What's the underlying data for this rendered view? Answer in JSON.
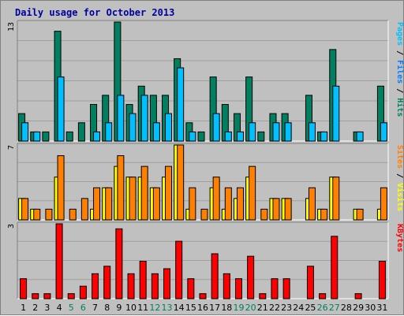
{
  "chart_data": {
    "type": "bar",
    "title": "Daily usage for October 2013",
    "categories": [
      "1",
      "2",
      "3",
      "4",
      "5",
      "6",
      "7",
      "8",
      "9",
      "10",
      "11",
      "12",
      "13",
      "14",
      "15",
      "16",
      "17",
      "18",
      "19",
      "20",
      "21",
      "22",
      "23",
      "24",
      "25",
      "26",
      "27",
      "28",
      "29",
      "30",
      "31"
    ],
    "weekend_days": [
      "5",
      "6",
      "12",
      "13",
      "19",
      "20",
      "26",
      "27"
    ],
    "panels": [
      {
        "id": "hits",
        "ymax": 13,
        "ymax_label": "13",
        "series": [
          {
            "name": "Hits",
            "color": "#008060",
            "values": [
              3,
              1,
              1,
              12,
              1,
              2,
              4,
              5,
              13,
              4,
              6,
              5,
              5,
              9,
              2,
              1,
              7,
              4,
              3,
              7,
              1,
              3,
              3,
              0,
              5,
              1,
              10,
              0,
              1,
              0,
              6
            ]
          },
          {
            "name": "Files",
            "color": "#00C0FF",
            "values": [
              2,
              1,
              0,
              7,
              0,
              0,
              1,
              2,
              5,
              3,
              5,
              2,
              3,
              8,
              1,
              0,
              3,
              1,
              1,
              2,
              0,
              2,
              2,
              0,
              2,
              1,
              6,
              0,
              1,
              0,
              2
            ]
          },
          {
            "name": "Pages",
            "color": "#00C0FF",
            "values": [
              0,
              0,
              0,
              0,
              0,
              0,
              0,
              0,
              0,
              0,
              0,
              0,
              0,
              0,
              0,
              0,
              0,
              0,
              0,
              0,
              0,
              0,
              0,
              0,
              0,
              0,
              0,
              0,
              0,
              0,
              0
            ]
          }
        ],
        "right_labels": [
          {
            "text": "Pages",
            "color": "#00C0FF"
          },
          {
            "text": " / ",
            "color": "#000000"
          },
          {
            "text": "Files",
            "color": "#0080FF"
          },
          {
            "text": " / ",
            "color": "#000000"
          },
          {
            "text": "Hits",
            "color": "#008060"
          }
        ]
      },
      {
        "id": "visits",
        "ymax": 7,
        "ymax_label": "7",
        "series": [
          {
            "name": "Visits",
            "color": "#FFFF00",
            "values": [
              2,
              1,
              0,
              4,
              0,
              0,
              1,
              3,
              5,
              4,
              4,
              3,
              4,
              7,
              1,
              0,
              3,
              1,
              2,
              4,
              0,
              2,
              2,
              0,
              2,
              1,
              4,
              0,
              1,
              0,
              1
            ]
          },
          {
            "name": "Sites",
            "color": "#FF8000",
            "values": [
              2,
              1,
              1,
              6,
              1,
              2,
              3,
              3,
              6,
              4,
              5,
              3,
              5,
              7,
              3,
              1,
              4,
              3,
              3,
              5,
              1,
              2,
              2,
              0,
              3,
              1,
              4,
              0,
              1,
              0,
              3
            ]
          }
        ],
        "right_labels": [
          {
            "text": "Sites",
            "color": "#FF8000"
          },
          {
            "text": " / ",
            "color": "#000000"
          },
          {
            "text": "Visits",
            "color": "#FFFF00"
          }
        ]
      },
      {
        "id": "kbytes",
        "ymax": 3,
        "ymax_label": "3",
        "series": [
          {
            "name": "KBytes",
            "color": "#FF0000",
            "values": [
              0.8,
              0.2,
              0.2,
              3.0,
              0.2,
              0.5,
              1.0,
              1.3,
              2.8,
              1.0,
              1.5,
              1.0,
              1.2,
              2.3,
              0.8,
              0.2,
              1.8,
              1.0,
              0.8,
              1.7,
              0.2,
              0.8,
              0.8,
              0,
              1.3,
              0.2,
              2.5,
              0,
              0.2,
              0,
              1.5
            ]
          }
        ],
        "right_labels": [
          {
            "text": "KBytes",
            "color": "#FF0000"
          }
        ]
      }
    ],
    "colors": {
      "background": "#C0C0C0",
      "title": "#0000A0",
      "weekday_label": "#000000",
      "weekend_label": "#00805C"
    }
  }
}
